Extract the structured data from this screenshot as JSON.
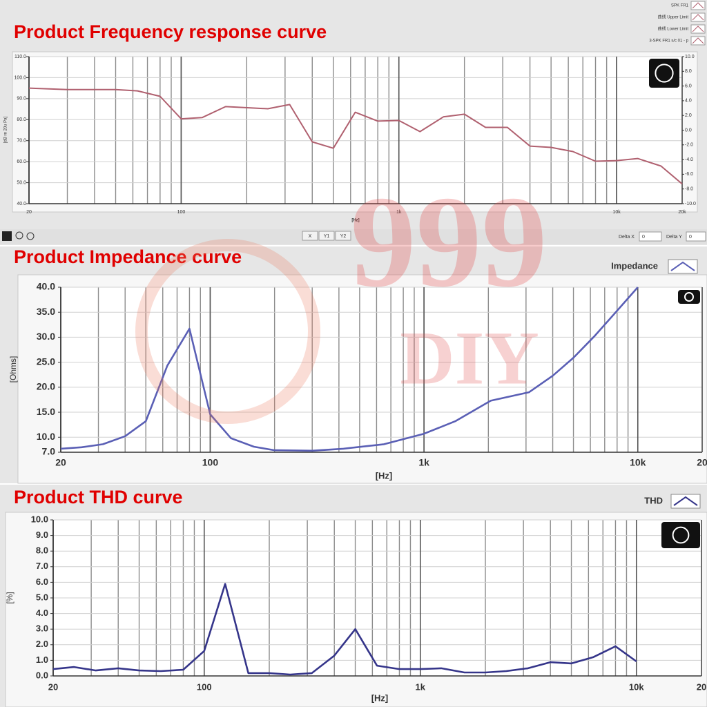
{
  "chart_data": [
    {
      "type": "line",
      "title": "Product Frequency response curve",
      "xlabel": "[Hz]",
      "ylabel": "[dB re 20u Pa]",
      "log_x": true,
      "grid": true,
      "legend": "top-right",
      "legend_extra": [
        "曲线 Upper Limit",
        "曲线 Lower Limit",
        "3-SPK FR1 s/c 01 - p"
      ],
      "x": [
        20,
        30,
        50,
        63,
        80,
        100,
        125,
        160,
        250,
        315,
        400,
        500,
        630,
        800,
        1000,
        1250,
        1600,
        2000,
        2500,
        3150,
        4000,
        5000,
        6300,
        8000,
        10000,
        12500,
        16000,
        20000
      ],
      "series": [
        {
          "name": "SPK FR1",
          "color": "#b0606f",
          "values": [
            95,
            94.3,
            94.3,
            93.7,
            91.1,
            80.4,
            81,
            86.2,
            85.2,
            87.2,
            69.4,
            66.4,
            83.5,
            79.3,
            79.6,
            74.3,
            81.3,
            82.6,
            76.3,
            76.3,
            67.4,
            66.8,
            64.8,
            60.2,
            60.5,
            61.5,
            57.9,
            49.4
          ]
        }
      ],
      "xlim": [
        20,
        20000
      ],
      "xticks": [
        20,
        100,
        {
          "value": 1000,
          "label": "1k"
        },
        {
          "value": 10000,
          "label": "10k"
        },
        {
          "value": 20000,
          "label": "20k"
        }
      ],
      "ylim": [
        40,
        110
      ],
      "yticks": [
        {
          "value": 40,
          "label": "40.0"
        },
        {
          "value": 50,
          "label": "50.0"
        },
        {
          "value": 60,
          "label": "60.0"
        },
        {
          "value": 70,
          "label": "70.0"
        },
        {
          "value": 80,
          "label": "80.0"
        },
        {
          "value": 90,
          "label": "90.0"
        },
        {
          "value": 100,
          "label": "100.0"
        },
        {
          "value": 110,
          "label": "110.0"
        }
      ],
      "y2lim": [
        -10,
        10
      ],
      "y2ticks": [
        {
          "value": -10,
          "label": "-10.0"
        },
        {
          "value": -8,
          "label": "-8.0"
        },
        {
          "value": -6,
          "label": "-6.0"
        },
        {
          "value": -4,
          "label": "-4.0"
        },
        {
          "value": -2,
          "label": "-2.0"
        },
        {
          "value": 0,
          "label": "0.0"
        },
        {
          "value": 2,
          "label": "2.0"
        },
        {
          "value": 4,
          "label": "4.0"
        },
        {
          "value": 6,
          "label": "6.0"
        },
        {
          "value": 8,
          "label": "8.0"
        },
        {
          "value": 10,
          "label": "10.0"
        }
      ]
    },
    {
      "type": "line",
      "title": "Product Impedance curve",
      "xlabel": "[Hz]",
      "ylabel": "[Ohms]",
      "log_x": true,
      "grid": true,
      "legend": "top-right",
      "x": [
        20,
        25,
        31.5,
        40,
        50,
        63,
        80,
        100,
        125,
        160,
        200,
        300,
        420,
        650,
        1000,
        1400,
        2050,
        3100,
        4000,
        5000,
        6300,
        8000,
        10000
      ],
      "series": [
        {
          "name": "Impedance",
          "color": "#5a5fb5",
          "values": [
            7.7,
            8.0,
            8.6,
            10.2,
            13.2,
            24.3,
            31.7,
            14.6,
            9.8,
            8.1,
            7.4,
            7.3,
            7.7,
            8.6,
            10.7,
            13.2,
            17.3,
            19.0,
            22.3,
            25.9,
            30.3,
            35.3,
            40
          ]
        }
      ],
      "xlim": [
        20,
        20000
      ],
      "xticks": [
        20,
        100,
        {
          "value": 1000,
          "label": "1k"
        },
        {
          "value": 10000,
          "label": "10k"
        },
        {
          "value": 20000,
          "label": "20"
        }
      ],
      "ylim": [
        7,
        40
      ],
      "yticks": [
        {
          "value": 7,
          "label": "7.0"
        },
        {
          "value": 10,
          "label": "10.0"
        },
        {
          "value": 15,
          "label": "15.0"
        },
        {
          "value": 20,
          "label": "20.0"
        },
        {
          "value": 25,
          "label": "25.0"
        },
        {
          "value": 30,
          "label": "30.0"
        },
        {
          "value": 35,
          "label": "35.0"
        },
        {
          "value": 40,
          "label": "40.0"
        }
      ]
    },
    {
      "type": "line",
      "title": "Product THD curve",
      "xlabel": "[Hz]",
      "ylabel": "[%]",
      "log_x": true,
      "grid": true,
      "legend": "top-right",
      "x": [
        20,
        25,
        31.5,
        40,
        50,
        63,
        80,
        100,
        125,
        160,
        200,
        250,
        315,
        400,
        500,
        630,
        800,
        1000,
        1250,
        1600,
        2000,
        2500,
        3150,
        4000,
        5000,
        6300,
        8000,
        10000
      ],
      "series": [
        {
          "name": "THD",
          "color": "#35358a",
          "values": [
            0.44,
            0.57,
            0.35,
            0.49,
            0.35,
            0.31,
            0.4,
            1.6,
            5.9,
            0.18,
            0.18,
            0.09,
            0.18,
            1.3,
            3.0,
            0.66,
            0.44,
            0.44,
            0.49,
            0.22,
            0.22,
            0.31,
            0.49,
            0.88,
            0.8,
            1.2,
            1.9,
            0.93
          ]
        }
      ],
      "xlim": [
        20,
        20000
      ],
      "xticks": [
        20,
        100,
        {
          "value": 1000,
          "label": "1k"
        },
        {
          "value": 10000,
          "label": "10k"
        },
        {
          "value": 20000,
          "label": "20"
        }
      ],
      "ylim": [
        0,
        10
      ],
      "yticks": [
        {
          "value": 0,
          "label": "0.0"
        },
        {
          "value": 1,
          "label": "1.0"
        },
        {
          "value": 2,
          "label": "2.0"
        },
        {
          "value": 3,
          "label": "3.0"
        },
        {
          "value": 4,
          "label": "4.0"
        },
        {
          "value": 5,
          "label": "5.0"
        },
        {
          "value": 6,
          "label": "6.0"
        },
        {
          "value": 7,
          "label": "7.0"
        },
        {
          "value": 8,
          "label": "8.0"
        },
        {
          "value": 9,
          "label": "9.0"
        },
        {
          "value": 10,
          "label": "10.0"
        }
      ]
    }
  ],
  "toolbar": {
    "buttons": [
      "X",
      "Y1",
      "Y2"
    ],
    "delta_x_label": "Delta X",
    "delta_x": 0,
    "delta_y_label": "Delta Y",
    "delta_y": 0
  },
  "watermark": {
    "number": "999",
    "brand": "DIY"
  }
}
